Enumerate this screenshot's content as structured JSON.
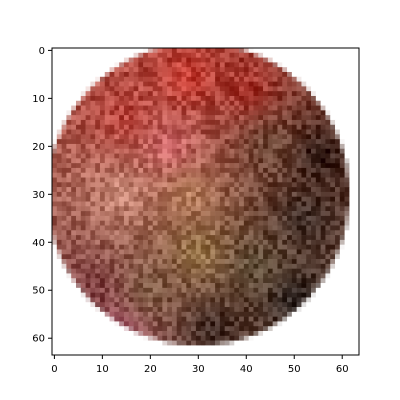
{
  "chart_data": {
    "type": "heatmap",
    "title": "",
    "xlabel": "",
    "ylabel": "",
    "image_shape": [
      64,
      64
    ],
    "xlim": [
      -0.5,
      63.5
    ],
    "ylim": [
      63.5,
      -0.5
    ],
    "xticks": [
      0,
      10,
      20,
      30,
      40,
      50,
      60
    ],
    "yticks": [
      0,
      10,
      20,
      30,
      40,
      50,
      60
    ],
    "xtick_labels": [
      "0",
      "10",
      "20",
      "30",
      "40",
      "50",
      "60"
    ],
    "ytick_labels": [
      "0",
      "10",
      "20",
      "30",
      "40",
      "50",
      "60"
    ],
    "grid": false,
    "content": {
      "shape": "disc",
      "center": [
        30,
        30
      ],
      "radius": 31,
      "background": "#ffffff",
      "color_anchors": [
        {
          "x": 28,
          "y": 6,
          "color": "#c83a30"
        },
        {
          "x": 40,
          "y": 8,
          "color": "#a83028"
        },
        {
          "x": 15,
          "y": 14,
          "color": "#b84038"
        },
        {
          "x": 24,
          "y": 20,
          "color": "#d46a6e"
        },
        {
          "x": 14,
          "y": 30,
          "color": "#c98a78"
        },
        {
          "x": 28,
          "y": 30,
          "color": "#b8805c"
        },
        {
          "x": 45,
          "y": 20,
          "color": "#6e4a38"
        },
        {
          "x": 55,
          "y": 22,
          "color": "#2e1a14"
        },
        {
          "x": 52,
          "y": 35,
          "color": "#3a2a24"
        },
        {
          "x": 30,
          "y": 42,
          "color": "#9a7848"
        },
        {
          "x": 42,
          "y": 45,
          "color": "#5a4a34"
        },
        {
          "x": 20,
          "y": 50,
          "color": "#7a5840"
        },
        {
          "x": 8,
          "y": 50,
          "color": "#7a3a3c"
        },
        {
          "x": 33,
          "y": 58,
          "color": "#3a2620"
        },
        {
          "x": 50,
          "y": 52,
          "color": "#2a2220"
        },
        {
          "x": 12,
          "y": 60,
          "color": "#c06080"
        }
      ]
    }
  }
}
